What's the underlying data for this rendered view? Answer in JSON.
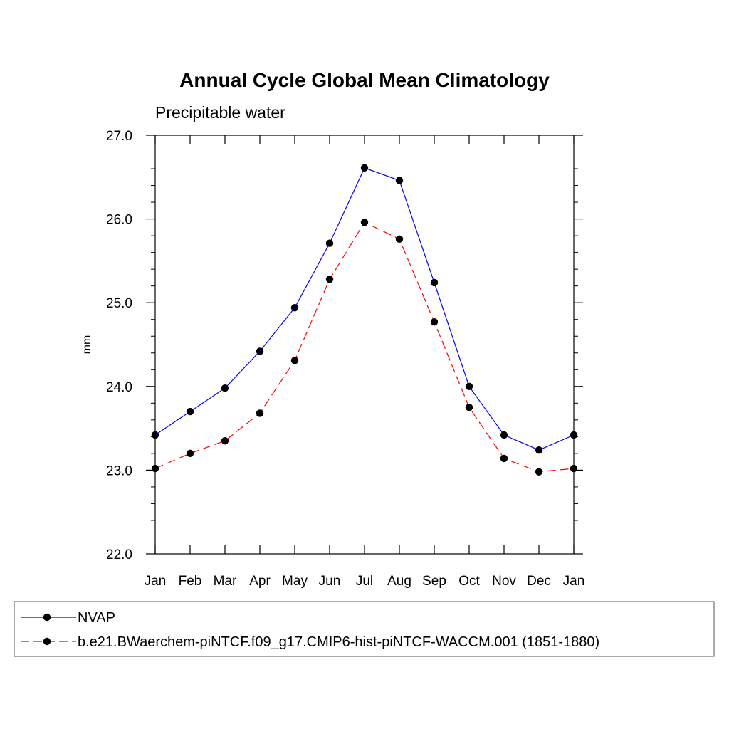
{
  "chart_data": {
    "type": "line",
    "title": "Annual Cycle Global Mean Climatology",
    "subtitle": "Precipitable water",
    "xlabel": "",
    "ylabel": "mm",
    "categories": [
      "Jan",
      "Feb",
      "Mar",
      "Apr",
      "May",
      "Jun",
      "Jul",
      "Aug",
      "Sep",
      "Oct",
      "Nov",
      "Dec",
      "Jan"
    ],
    "ylim": [
      22.0,
      27.0
    ],
    "y_ticks": [
      "22.0",
      "23.0",
      "24.0",
      "25.0",
      "26.0",
      "27.0"
    ],
    "y_minor_step": 0.2,
    "grid": false,
    "legend_position": "bottom",
    "series": [
      {
        "name": "NVAP",
        "values": [
          23.42,
          23.7,
          23.98,
          24.42,
          24.94,
          25.71,
          26.61,
          26.46,
          25.24,
          24.0,
          23.42,
          23.24,
          23.42
        ],
        "color": "#0000ff",
        "dash": "solid",
        "marker": "filled-circle"
      },
      {
        "name": "b.e21.BWaerchem-piNTCF.f09_g17.CMIP6-hist-piNTCF-WACCM.001 (1851-1880)",
        "values": [
          23.02,
          23.2,
          23.35,
          23.68,
          24.31,
          25.28,
          25.96,
          25.76,
          24.77,
          23.75,
          23.14,
          22.98,
          23.02
        ],
        "color": "#ff0000",
        "dash": "dashed",
        "marker": "filled-circle"
      }
    ]
  }
}
